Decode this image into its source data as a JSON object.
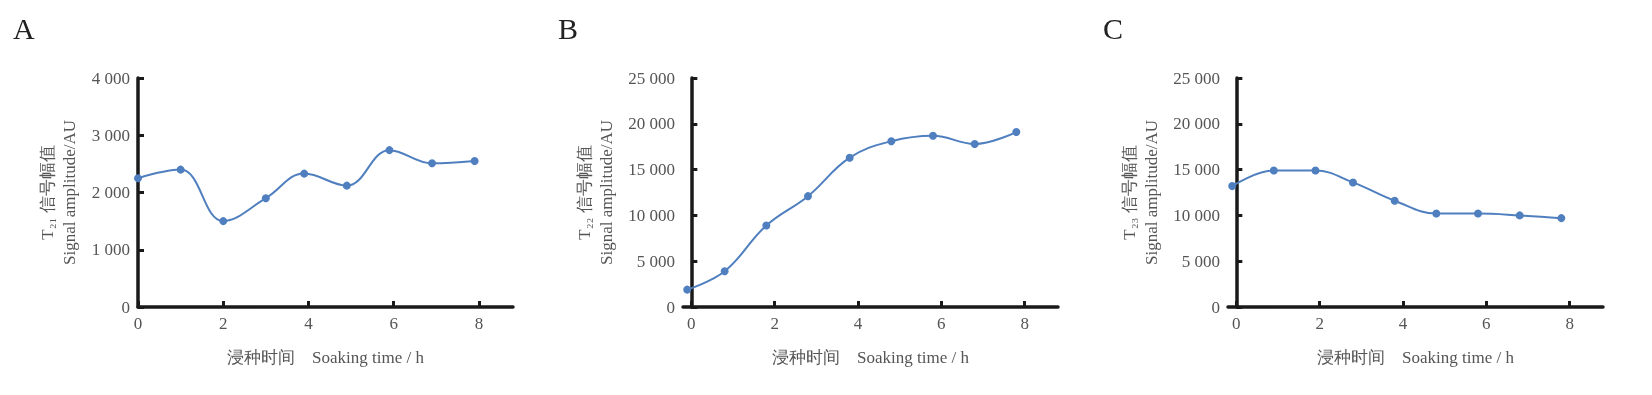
{
  "chart_data": [
    {
      "type": "line",
      "title": "A",
      "xlabel": "浸种时间　Soaking time / h",
      "ylabel": "T₂₁ 信号幅值\nSignal amplitude/AU",
      "marker": "circle",
      "grid": false,
      "x": [
        0,
        1,
        2,
        3,
        3.9,
        4.9,
        5.9,
        6.9,
        7.9
      ],
      "series": [
        {
          "color": "#4f7fbf",
          "values": [
            2250,
            2400,
            1500,
            1900,
            2330,
            2120,
            2740,
            2510,
            2550
          ]
        }
      ],
      "xlim": [
        0,
        8.8
      ],
      "xticks": [
        0,
        2,
        4,
        6,
        8
      ],
      "ylim": [
        0,
        4000
      ],
      "yticks": [
        {
          "value": 0,
          "label": "0"
        },
        {
          "value": 1000,
          "label": "1 000"
        },
        {
          "value": 2000,
          "label": "2 000"
        },
        {
          "value": 3000,
          "label": "3 000"
        },
        {
          "value": 4000,
          "label": "4 000"
        }
      ]
    },
    {
      "type": "line",
      "title": "B",
      "xlabel": "浸种时间　Soaking time / h",
      "ylabel": "T₂₂ 信号幅值\nSignal amplitude/AU",
      "marker": "circle",
      "grid": false,
      "x": [
        -0.1,
        0.8,
        1.8,
        2.8,
        3.8,
        4.8,
        5.8,
        6.8,
        7.8
      ],
      "series": [
        {
          "color": "#4f7fbf",
          "values": [
            1900,
            3900,
            8900,
            12100,
            16300,
            18100,
            18700,
            17800,
            19100
          ]
        }
      ],
      "xlim": [
        -0.2,
        8.8
      ],
      "xticks": [
        0,
        2,
        4,
        6,
        8
      ],
      "ylim": [
        0,
        25000
      ],
      "yticks": [
        {
          "value": 0,
          "label": "0"
        },
        {
          "value": 5000,
          "label": "5 000"
        },
        {
          "value": 10000,
          "label": "10 000"
        },
        {
          "value": 15000,
          "label": "15 000"
        },
        {
          "value": 20000,
          "label": "20 000"
        },
        {
          "value": 25000,
          "label": "25 000"
        }
      ]
    },
    {
      "type": "line",
      "title": "C",
      "xlabel": "浸种时间　Soaking time / h",
      "ylabel": "T₂₃ 信号幅值\nSignal amplitude/AU",
      "marker": "circle",
      "grid": false,
      "x": [
        -0.1,
        0.9,
        1.9,
        2.8,
        3.8,
        4.8,
        5.8,
        6.8,
        7.8
      ],
      "series": [
        {
          "color": "#4f7fbf",
          "values": [
            13200,
            14900,
            14900,
            13600,
            11600,
            10200,
            10200,
            10000,
            9700
          ]
        }
      ],
      "xlim": [
        -0.2,
        8.8
      ],
      "xticks": [
        0,
        2,
        4,
        6,
        8
      ],
      "ylim": [
        0,
        25000
      ],
      "yticks": [
        {
          "value": 0,
          "label": "0"
        },
        {
          "value": 5000,
          "label": "5 000"
        },
        {
          "value": 10000,
          "label": "10 000"
        },
        {
          "value": 15000,
          "label": "15 000"
        },
        {
          "value": 20000,
          "label": "20 000"
        },
        {
          "value": 25000,
          "label": "25 000"
        }
      ]
    }
  ]
}
